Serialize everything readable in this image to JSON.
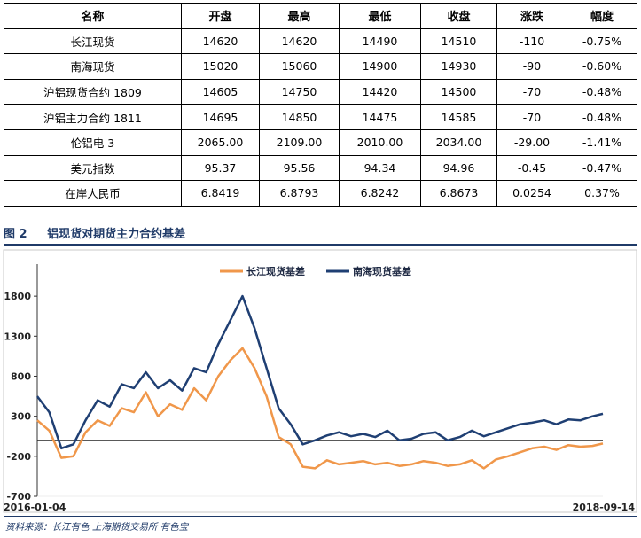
{
  "table": {
    "headers": [
      "名称",
      "开盘",
      "最高",
      "最低",
      "收盘",
      "涨跌",
      "幅度"
    ],
    "rows": [
      [
        "长江现货",
        "14620",
        "14620",
        "14490",
        "14510",
        "-110",
        "-0.75%"
      ],
      [
        "南海现货",
        "15020",
        "15060",
        "14900",
        "14930",
        "-90",
        "-0.60%"
      ],
      [
        "沪铝现货合约 1809",
        "14605",
        "14750",
        "14420",
        "14500",
        "-70",
        "-0.48%"
      ],
      [
        "沪铝主力合约 1811",
        "14695",
        "14850",
        "14475",
        "14585",
        "-70",
        "-0.48%"
      ],
      [
        "伦铝电 3",
        "2065.00",
        "2109.00",
        "2010.00",
        "2034.00",
        "-29.00",
        "-1.41%"
      ],
      [
        "美元指数",
        "95.37",
        "95.56",
        "94.34",
        "94.96",
        "-0.45",
        "-0.47%"
      ],
      [
        "在岸人民币",
        "6.8419",
        "6.8793",
        "6.8242",
        "6.8673",
        "0.0254",
        "0.37%"
      ]
    ]
  },
  "figure": {
    "number": "图 2",
    "title": "铝现货对期货主力合约基差"
  },
  "source_note": "资料来源：长江有色   上海期货交易所   有色宝",
  "colors": {
    "changjiang": "#f0974a",
    "nanhai": "#1f3f73",
    "accent": "#1f3a68"
  },
  "chart_data": {
    "type": "line",
    "title": "",
    "xlabel": "",
    "ylabel": "",
    "x_start": "2016-01-04",
    "x_end": "2018-09-14",
    "x_tick_labels": [
      "2016-01-04",
      "2018-09-14"
    ],
    "ylim": [
      -700,
      2200
    ],
    "y_ticks": [
      -700,
      -200,
      300,
      800,
      1300,
      1800
    ],
    "grid": false,
    "legend": "top-center",
    "series": [
      {
        "name": "长江现货基差",
        "x": [
          "2016-01-04",
          "2016-01-25",
          "2016-02-15",
          "2016-03-07",
          "2016-03-28",
          "2016-04-18",
          "2016-05-09",
          "2016-05-30",
          "2016-06-20",
          "2016-07-11",
          "2016-08-01",
          "2016-08-22",
          "2016-09-12",
          "2016-10-03",
          "2016-10-24",
          "2016-11-14",
          "2016-12-05",
          "2016-12-26",
          "2017-01-16",
          "2017-02-06",
          "2017-02-27",
          "2017-03-20",
          "2017-04-10",
          "2017-05-01",
          "2017-05-22",
          "2017-06-12",
          "2017-07-03",
          "2017-07-24",
          "2017-08-14",
          "2017-09-04",
          "2017-09-25",
          "2017-10-16",
          "2017-11-06",
          "2017-11-27",
          "2017-12-18",
          "2018-01-08",
          "2018-01-29",
          "2018-02-19",
          "2018-03-12",
          "2018-04-02",
          "2018-04-23",
          "2018-05-14",
          "2018-06-04",
          "2018-06-25",
          "2018-07-16",
          "2018-08-06",
          "2018-08-27",
          "2018-09-14"
        ],
        "values": [
          250,
          120,
          -220,
          -200,
          100,
          250,
          180,
          400,
          350,
          600,
          300,
          450,
          380,
          650,
          500,
          800,
          1000,
          1150,
          900,
          550,
          40,
          -50,
          -330,
          -350,
          -250,
          -300,
          -280,
          -260,
          -300,
          -280,
          -320,
          -300,
          -260,
          -280,
          -320,
          -300,
          -250,
          -350,
          -240,
          -200,
          -150,
          -100,
          -80,
          -120,
          -60,
          -80,
          -70,
          -40
        ]
      },
      {
        "name": "南海现货基差",
        "x": [
          "2016-01-04",
          "2016-01-25",
          "2016-02-15",
          "2016-03-07",
          "2016-03-28",
          "2016-04-18",
          "2016-05-09",
          "2016-05-30",
          "2016-06-20",
          "2016-07-11",
          "2016-08-01",
          "2016-08-22",
          "2016-09-12",
          "2016-10-03",
          "2016-10-24",
          "2016-11-14",
          "2016-12-05",
          "2016-12-26",
          "2017-01-16",
          "2017-02-06",
          "2017-02-27",
          "2017-03-20",
          "2017-04-10",
          "2017-05-01",
          "2017-05-22",
          "2017-06-12",
          "2017-07-03",
          "2017-07-24",
          "2017-08-14",
          "2017-09-04",
          "2017-09-25",
          "2017-10-16",
          "2017-11-06",
          "2017-11-27",
          "2017-12-18",
          "2018-01-08",
          "2018-01-29",
          "2018-02-19",
          "2018-03-12",
          "2018-04-02",
          "2018-04-23",
          "2018-05-14",
          "2018-06-04",
          "2018-06-25",
          "2018-07-16",
          "2018-08-06",
          "2018-08-27",
          "2018-09-14"
        ],
        "values": [
          550,
          350,
          -100,
          -50,
          250,
          500,
          420,
          700,
          650,
          850,
          650,
          750,
          620,
          900,
          850,
          1200,
          1500,
          1800,
          1400,
          900,
          400,
          200,
          -50,
          0,
          60,
          100,
          50,
          80,
          40,
          120,
          0,
          20,
          80,
          100,
          0,
          40,
          120,
          50,
          100,
          150,
          200,
          220,
          250,
          200,
          260,
          250,
          300,
          330
        ]
      }
    ],
    "zero_line": true
  }
}
